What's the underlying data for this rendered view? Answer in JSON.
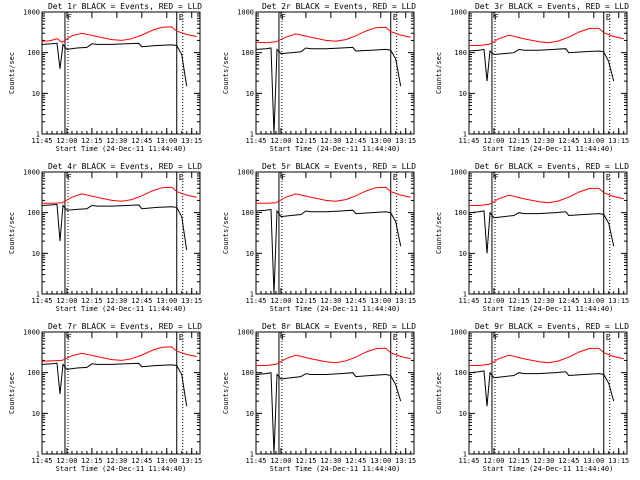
{
  "x_tick_labels": [
    "11:45",
    "12:00",
    "12:15",
    "12:30",
    "12:45",
    "13:00",
    "13:15"
  ],
  "y_tick_labels": [
    "1",
    "10",
    "100",
    "1000"
  ],
  "xlabel": "Start Time (24-Dec-11 11:44:40)",
  "ylabel": "Counts/sec",
  "colors": {
    "events": "#000000",
    "lld": "#ff0000"
  },
  "chart_data": [
    {
      "type": "line",
      "title": "Det 1r BLACK = Events, RED = LLD",
      "xlabel": "Start Time (24-Dec-11 11:44:40)",
      "ylabel": "Counts/sec",
      "x_range": [
        11.75,
        13.333
      ],
      "ylim": [
        1,
        1000
      ],
      "yscale": "log",
      "markers": [
        {
          "label": "F",
          "x": 11.98
        },
        {
          "label": "E",
          "x": 13.1
        }
      ],
      "series": [
        {
          "x": [
            11.75,
            11.82,
            11.87,
            11.9,
            11.95,
            12.05,
            12.15,
            12.3,
            12.45,
            12.55,
            12.65,
            12.75,
            12.85,
            12.95,
            13.05,
            13.1,
            13.2,
            13.3
          ],
          "y": [
            190,
            195,
            210,
            220,
            180,
            260,
            300,
            250,
            210,
            200,
            220,
            270,
            350,
            420,
            430,
            340,
            280,
            250
          ]
        },
        {
          "x": [
            11.75,
            11.85,
            11.9,
            11.93,
            11.96,
            12.0,
            12.1,
            12.2,
            12.25,
            12.3,
            12.45,
            12.6,
            12.72,
            12.75,
            12.9,
            13.05,
            13.1,
            13.15,
            13.2
          ],
          "y": [
            160,
            165,
            170,
            40,
            160,
            120,
            130,
            135,
            165,
            160,
            160,
            165,
            170,
            140,
            150,
            155,
            150,
            90,
            15
          ]
        }
      ]
    },
    {
      "type": "line",
      "title": "Det 2r BLACK = Events, RED = LLD",
      "xlabel": "Start Time (24-Dec-11 11:44:40)",
      "ylabel": "Counts/sec",
      "x_range": [
        11.75,
        13.333
      ],
      "ylim": [
        1,
        1000
      ],
      "yscale": "log",
      "markers": [
        {
          "label": "F",
          "x": 11.98
        },
        {
          "label": "E",
          "x": 13.1
        }
      ],
      "series": [
        {
          "x": [
            11.75,
            11.85,
            11.95,
            12.05,
            12.15,
            12.3,
            12.45,
            12.55,
            12.65,
            12.75,
            12.85,
            12.95,
            13.05,
            13.1,
            13.2,
            13.3
          ],
          "y": [
            180,
            175,
            185,
            240,
            290,
            240,
            200,
            190,
            210,
            260,
            340,
            410,
            420,
            330,
            270,
            240
          ]
        },
        {
          "x": [
            11.75,
            11.85,
            11.9,
            11.93,
            11.96,
            12.0,
            12.1,
            12.2,
            12.25,
            12.3,
            12.45,
            12.6,
            12.72,
            12.75,
            12.9,
            13.05,
            13.1,
            13.15,
            13.2
          ],
          "y": [
            120,
            125,
            130,
            1,
            120,
            95,
            100,
            105,
            130,
            125,
            125,
            130,
            135,
            110,
            115,
            120,
            115,
            70,
            15
          ]
        }
      ]
    },
    {
      "type": "line",
      "title": "Det 3r BLACK = Events, RED = LLD",
      "xlabel": "Start Time (24-Dec-11 11:44:40)",
      "ylabel": "Counts/sec",
      "x_range": [
        11.75,
        13.333
      ],
      "ylim": [
        1,
        1000
      ],
      "yscale": "log",
      "markers": [
        {
          "label": "F",
          "x": 11.98
        },
        {
          "label": "E",
          "x": 13.1
        }
      ],
      "series": [
        {
          "x": [
            11.75,
            11.85,
            11.95,
            12.05,
            12.15,
            12.3,
            12.45,
            12.55,
            12.65,
            12.75,
            12.85,
            12.95,
            13.05,
            13.1,
            13.2,
            13.3
          ],
          "y": [
            150,
            150,
            160,
            220,
            270,
            220,
            185,
            175,
            195,
            240,
            320,
            390,
            400,
            310,
            250,
            220
          ]
        },
        {
          "x": [
            11.75,
            11.85,
            11.9,
            11.93,
            11.96,
            12.0,
            12.1,
            12.2,
            12.25,
            12.3,
            12.45,
            12.6,
            12.72,
            12.75,
            12.9,
            13.05,
            13.1,
            13.15,
            13.2
          ],
          "y": [
            110,
            115,
            120,
            20,
            110,
            90,
            95,
            100,
            120,
            115,
            115,
            120,
            125,
            100,
            105,
            110,
            105,
            60,
            20
          ]
        }
      ]
    },
    {
      "type": "line",
      "title": "Det 4r BLACK = Events, RED = LLD",
      "xlabel": "Start Time (24-Dec-11 11:44:40)",
      "ylabel": "Counts/sec",
      "x_range": [
        11.75,
        13.333
      ],
      "ylim": [
        1,
        1000
      ],
      "yscale": "log",
      "markers": [
        {
          "label": "F",
          "x": 11.98
        },
        {
          "label": "E",
          "x": 13.1
        }
      ],
      "series": [
        {
          "x": [
            11.75,
            11.85,
            11.95,
            12.05,
            12.15,
            12.3,
            12.45,
            12.55,
            12.65,
            12.75,
            12.85,
            12.95,
            13.05,
            13.1,
            13.2,
            13.3
          ],
          "y": [
            170,
            170,
            175,
            240,
            290,
            240,
            200,
            190,
            210,
            260,
            340,
            410,
            420,
            330,
            270,
            240
          ]
        },
        {
          "x": [
            11.75,
            11.85,
            11.9,
            11.93,
            11.96,
            12.0,
            12.1,
            12.2,
            12.25,
            12.3,
            12.45,
            12.6,
            12.72,
            12.75,
            12.9,
            13.05,
            13.1,
            13.15,
            13.2
          ],
          "y": [
            150,
            155,
            160,
            20,
            150,
            115,
            120,
            125,
            150,
            145,
            145,
            150,
            155,
            125,
            135,
            140,
            135,
            80,
            12
          ]
        }
      ]
    },
    {
      "type": "line",
      "title": "Det 5r BLACK = Events, RED = LLD",
      "xlabel": "Start Time (24-Dec-11 11:44:40)",
      "ylabel": "Counts/sec",
      "x_range": [
        11.75,
        13.333
      ],
      "ylim": [
        1,
        1000
      ],
      "yscale": "log",
      "markers": [
        {
          "label": "F",
          "x": 11.98
        },
        {
          "label": "E",
          "x": 13.1
        }
      ],
      "series": [
        {
          "x": [
            11.75,
            11.85,
            11.95,
            12.05,
            12.15,
            12.3,
            12.45,
            12.55,
            12.65,
            12.75,
            12.85,
            12.95,
            13.05,
            13.1,
            13.2,
            13.3
          ],
          "y": [
            170,
            170,
            175,
            240,
            290,
            240,
            200,
            190,
            210,
            260,
            340,
            410,
            420,
            330,
            270,
            240
          ]
        },
        {
          "x": [
            11.75,
            11.85,
            11.9,
            11.93,
            11.96,
            12.0,
            12.1,
            12.2,
            12.25,
            12.3,
            12.45,
            12.6,
            12.72,
            12.75,
            12.9,
            13.05,
            13.1,
            13.15,
            13.2
          ],
          "y": [
            110,
            115,
            120,
            1,
            110,
            80,
            85,
            90,
            110,
            105,
            105,
            110,
            115,
            95,
            100,
            105,
            100,
            60,
            15
          ]
        }
      ]
    },
    {
      "type": "line",
      "title": "Det 6r BLACK = Events, RED = LLD",
      "xlabel": "Start Time (24-Dec-11 11:44:40)",
      "ylabel": "Counts/sec",
      "x_range": [
        11.75,
        13.333
      ],
      "ylim": [
        1,
        1000
      ],
      "yscale": "log",
      "markers": [
        {
          "label": "F",
          "x": 11.98
        },
        {
          "label": "E",
          "x": 13.1
        }
      ],
      "series": [
        {
          "x": [
            11.75,
            11.85,
            11.95,
            12.05,
            12.15,
            12.3,
            12.45,
            12.55,
            12.65,
            12.75,
            12.85,
            12.95,
            13.05,
            13.1,
            13.2,
            13.3
          ],
          "y": [
            150,
            150,
            160,
            220,
            270,
            220,
            185,
            175,
            195,
            240,
            320,
            390,
            400,
            310,
            250,
            220
          ]
        },
        {
          "x": [
            11.75,
            11.85,
            11.9,
            11.93,
            11.96,
            12.0,
            12.1,
            12.2,
            12.25,
            12.3,
            12.45,
            12.6,
            12.72,
            12.75,
            12.9,
            13.05,
            13.1,
            13.15,
            13.2
          ],
          "y": [
            100,
            105,
            110,
            10,
            100,
            75,
            80,
            85,
            100,
            95,
            95,
            100,
            105,
            85,
            90,
            95,
            90,
            55,
            15
          ]
        }
      ]
    },
    {
      "type": "line",
      "title": "Det 7r BLACK = Events, RED = LLD",
      "xlabel": "Start Time (24-Dec-11 11:44:40)",
      "ylabel": "Counts/sec",
      "x_range": [
        11.75,
        13.333
      ],
      "ylim": [
        1,
        1000
      ],
      "yscale": "log",
      "markers": [
        {
          "label": "F",
          "x": 11.98
        },
        {
          "label": "E",
          "x": 13.1
        }
      ],
      "series": [
        {
          "x": [
            11.75,
            11.85,
            11.95,
            12.05,
            12.15,
            12.3,
            12.45,
            12.55,
            12.65,
            12.75,
            12.85,
            12.95,
            13.05,
            13.1,
            13.2,
            13.3
          ],
          "y": [
            190,
            195,
            200,
            260,
            300,
            250,
            210,
            200,
            220,
            270,
            350,
            420,
            430,
            340,
            280,
            250
          ]
        },
        {
          "x": [
            11.75,
            11.85,
            11.9,
            11.93,
            11.96,
            12.0,
            12.1,
            12.2,
            12.25,
            12.3,
            12.45,
            12.6,
            12.72,
            12.75,
            12.9,
            13.05,
            13.1,
            13.15,
            13.2
          ],
          "y": [
            160,
            165,
            170,
            30,
            160,
            120,
            130,
            135,
            165,
            160,
            160,
            165,
            170,
            140,
            150,
            155,
            150,
            90,
            15
          ]
        }
      ]
    },
    {
      "type": "line",
      "title": "Det 8r BLACK = Events, RED = LLD",
      "xlabel": "Start Time (24-Dec-11 11:44:40)",
      "ylabel": "Counts/sec",
      "x_range": [
        11.75,
        13.333
      ],
      "ylim": [
        1,
        1000
      ],
      "yscale": "log",
      "markers": [
        {
          "label": "F",
          "x": 11.98
        },
        {
          "label": "E",
          "x": 13.1
        }
      ],
      "series": [
        {
          "x": [
            11.75,
            11.85,
            11.95,
            12.05,
            12.15,
            12.3,
            12.45,
            12.55,
            12.65,
            12.75,
            12.85,
            12.95,
            13.05,
            13.1,
            13.2,
            13.3
          ],
          "y": [
            150,
            150,
            160,
            220,
            270,
            220,
            185,
            175,
            195,
            240,
            320,
            390,
            400,
            310,
            250,
            220
          ]
        },
        {
          "x": [
            11.75,
            11.85,
            11.9,
            11.93,
            11.96,
            12.0,
            12.1,
            12.2,
            12.25,
            12.3,
            12.45,
            12.6,
            12.72,
            12.75,
            12.9,
            13.05,
            13.1,
            13.15,
            13.2
          ],
          "y": [
            90,
            95,
            100,
            1,
            90,
            70,
            75,
            80,
            95,
            90,
            90,
            95,
            100,
            80,
            85,
            90,
            85,
            50,
            20
          ]
        }
      ]
    },
    {
      "type": "line",
      "title": "Det 9r BLACK = Events, RED = LLD",
      "xlabel": "Start Time (24-Dec-11 11:44:40)",
      "ylabel": "Counts/sec",
      "x_range": [
        11.75,
        13.333
      ],
      "ylim": [
        1,
        1000
      ],
      "yscale": "log",
      "markers": [
        {
          "label": "F",
          "x": 11.98
        },
        {
          "label": "E",
          "x": 13.1
        }
      ],
      "series": [
        {
          "x": [
            11.75,
            11.85,
            11.95,
            12.05,
            12.15,
            12.3,
            12.45,
            12.55,
            12.65,
            12.75,
            12.85,
            12.95,
            13.05,
            13.1,
            13.2,
            13.3
          ],
          "y": [
            150,
            150,
            160,
            220,
            270,
            220,
            185,
            175,
            195,
            240,
            320,
            390,
            400,
            310,
            250,
            220
          ]
        },
        {
          "x": [
            11.75,
            11.85,
            11.9,
            11.93,
            11.96,
            12.0,
            12.1,
            12.2,
            12.25,
            12.3,
            12.45,
            12.6,
            12.72,
            12.75,
            12.9,
            13.05,
            13.1,
            13.15,
            13.2
          ],
          "y": [
            100,
            105,
            110,
            15,
            100,
            75,
            80,
            85,
            100,
            95,
            95,
            100,
            105,
            85,
            90,
            95,
            90,
            55,
            20
          ]
        }
      ]
    }
  ]
}
